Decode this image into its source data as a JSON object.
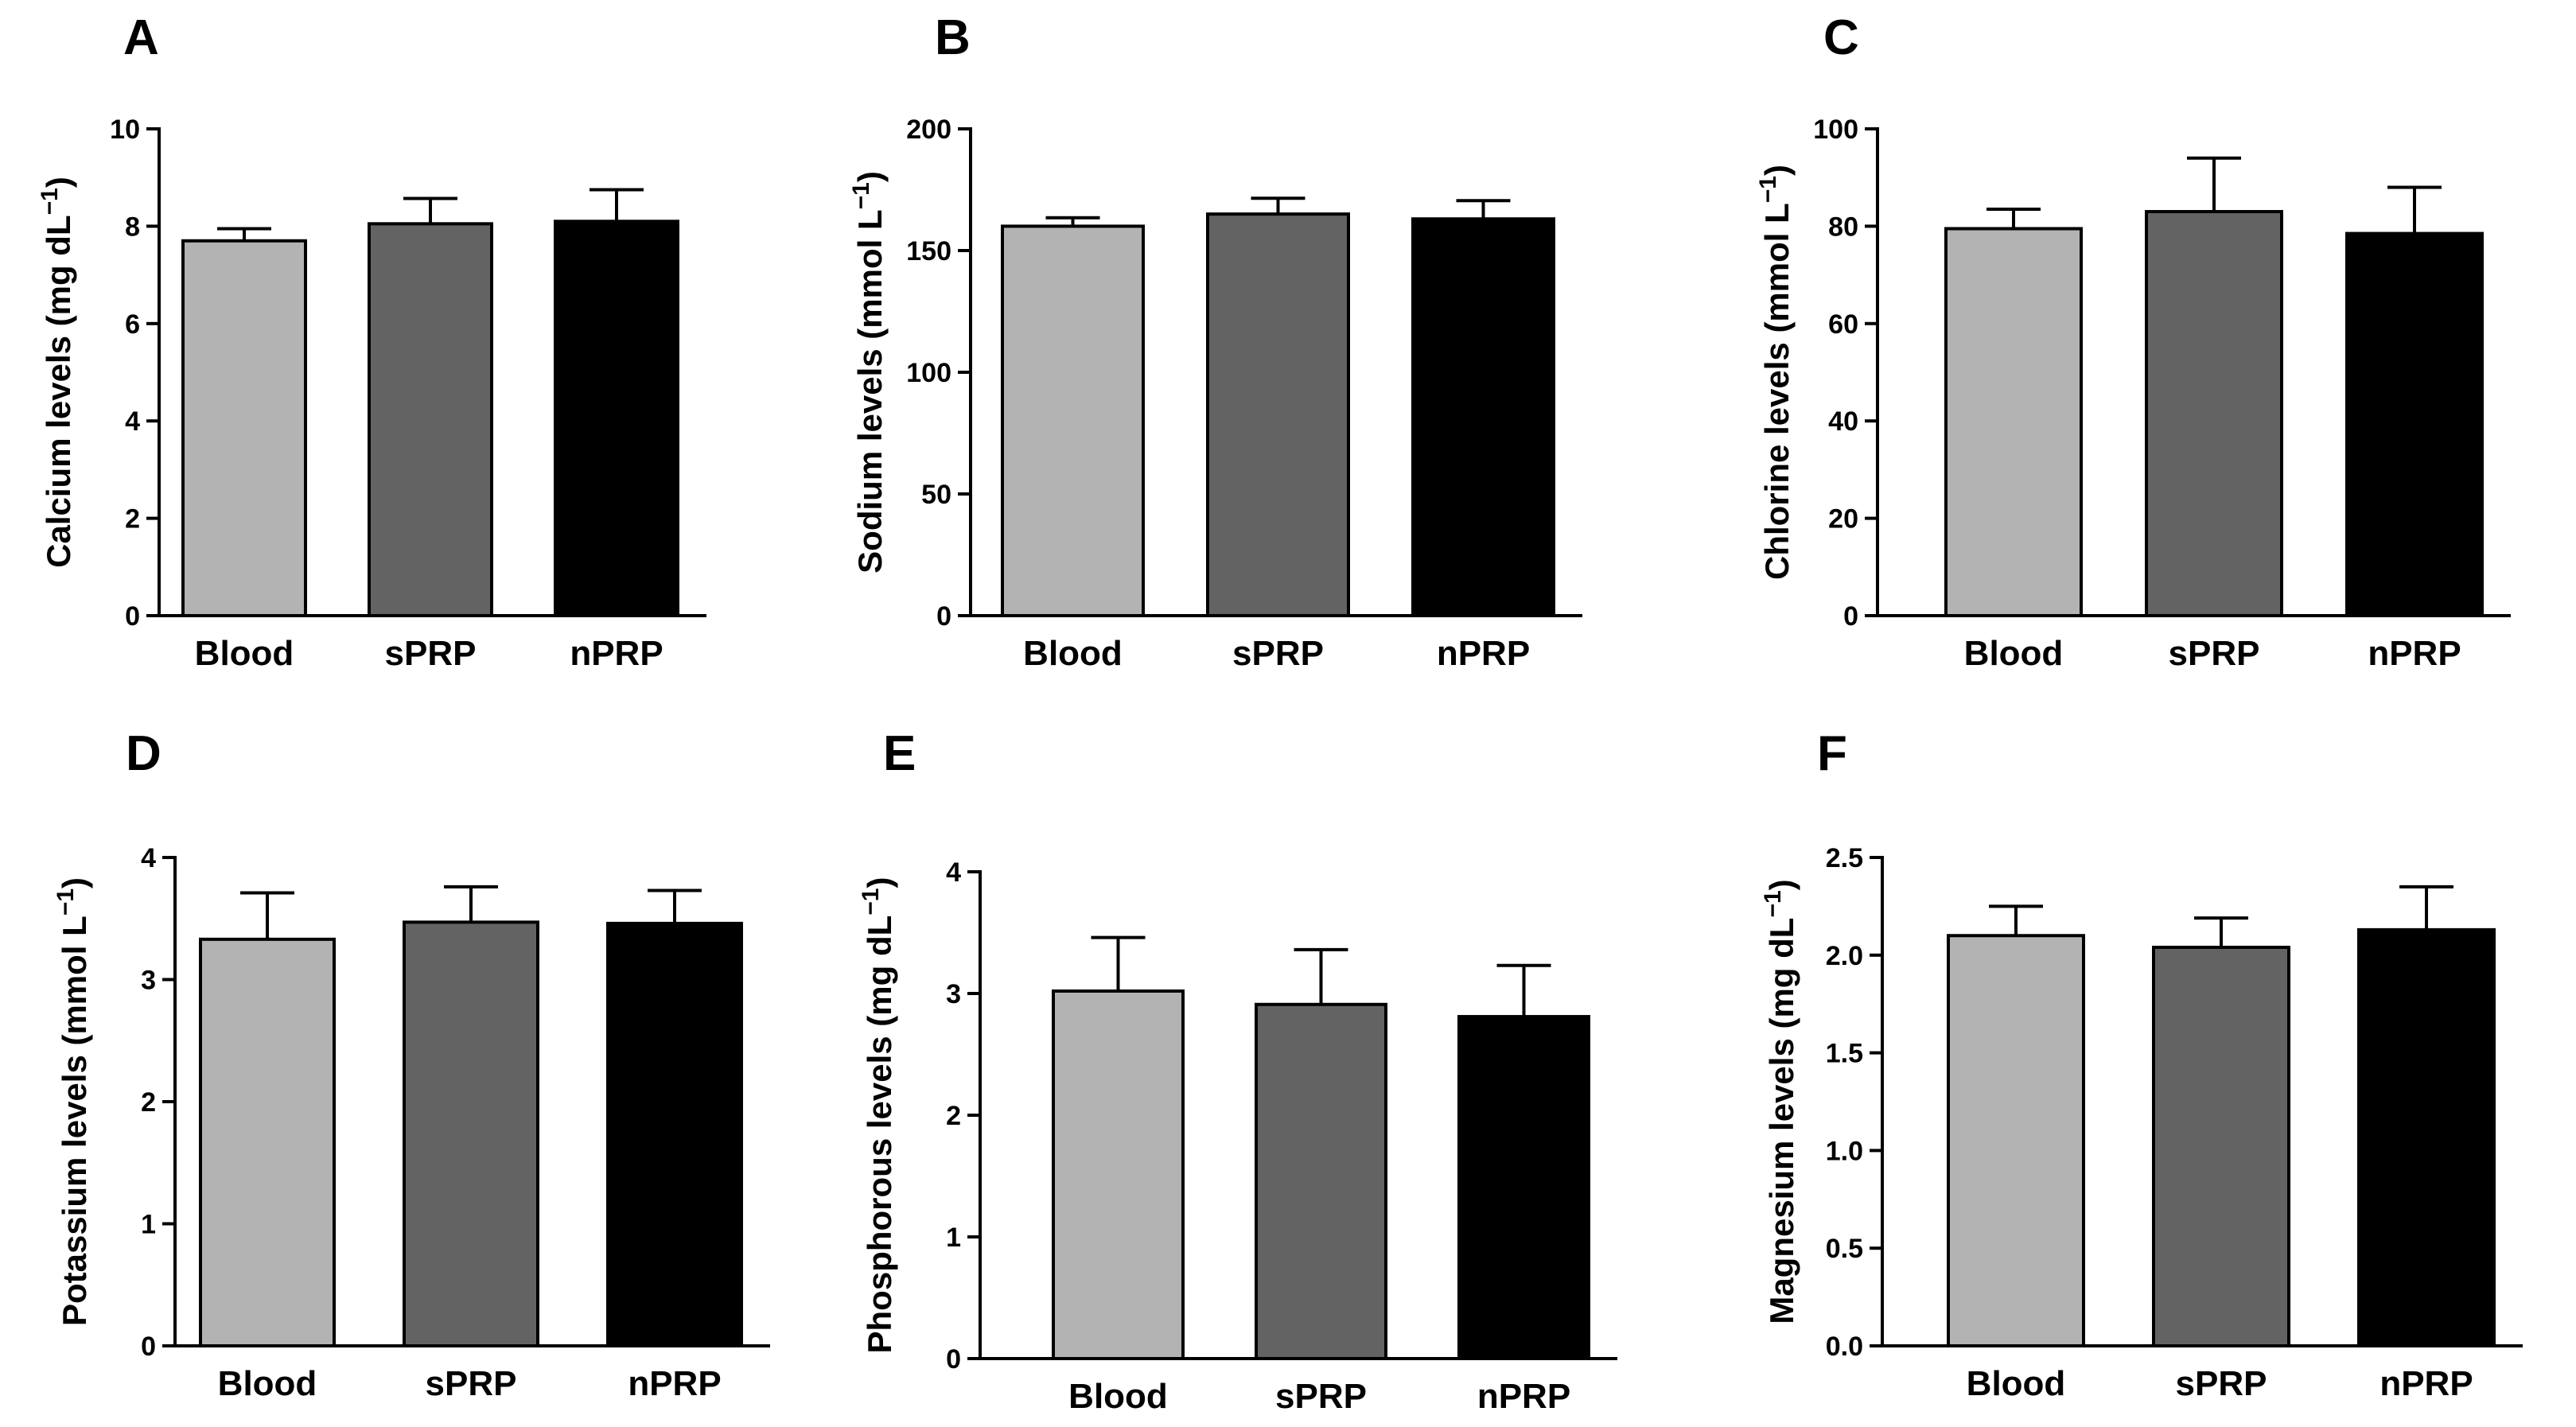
{
  "chart_data": [
    {
      "type": "bar",
      "panel": "A",
      "ylabel": "Calcium levels (mg dL",
      "ylabel_sup": "−1",
      "ylabel_end": ")",
      "categories": [
        "Blood",
        "sPRP",
        "nPRP"
      ],
      "values": [
        7.7,
        8.05,
        8.1
      ],
      "errors": [
        0.25,
        0.52,
        0.65
      ],
      "ylim": [
        0,
        10
      ],
      "yticks": [
        0,
        2,
        4,
        6,
        8,
        10
      ],
      "ytick_labels": [
        "0",
        "2",
        "4",
        "6",
        "8",
        "10"
      ],
      "colors": [
        "#b3b3b3",
        "#636363",
        "#000000"
      ]
    },
    {
      "type": "bar",
      "panel": "B",
      "ylabel": "Sodium levels (mmol L",
      "ylabel_sup": "−1",
      "ylabel_end": ")",
      "categories": [
        "Blood",
        "sPRP",
        "nPRP"
      ],
      "values": [
        160,
        165,
        163
      ],
      "errors": [
        3.5,
        6.5,
        7.5
      ],
      "ylim": [
        0,
        200
      ],
      "yticks": [
        0,
        50,
        100,
        150,
        200
      ],
      "ytick_labels": [
        "0",
        "50",
        "100",
        "150",
        "200"
      ],
      "colors": [
        "#b3b3b3",
        "#636363",
        "#000000"
      ]
    },
    {
      "type": "bar",
      "panel": "C",
      "ylabel": "Chlorine levels (mmol L",
      "ylabel_sup": "−1",
      "ylabel_end": ")",
      "categories": [
        "Blood",
        "sPRP",
        "nPRP"
      ],
      "values": [
        79.5,
        83,
        78.5
      ],
      "errors": [
        4,
        11,
        9.5
      ],
      "ylim": [
        0,
        100
      ],
      "yticks": [
        0,
        20,
        40,
        60,
        80,
        100
      ],
      "ytick_labels": [
        "0",
        "20",
        "40",
        "60",
        "80",
        "100"
      ],
      "colors": [
        "#b3b3b3",
        "#636363",
        "#000000"
      ]
    },
    {
      "type": "bar",
      "panel": "D",
      "ylabel": "Potassium levels (mmol L",
      "ylabel_sup": "−1",
      "ylabel_end": ")",
      "categories": [
        "Blood",
        "sPRP",
        "nPRP"
      ],
      "values": [
        3.33,
        3.47,
        3.46
      ],
      "errors": [
        0.38,
        0.29,
        0.27
      ],
      "ylim": [
        0,
        4
      ],
      "yticks": [
        0,
        1,
        2,
        3,
        4
      ],
      "ytick_labels": [
        "0",
        "1",
        "2",
        "3",
        "4"
      ],
      "colors": [
        "#b3b3b3",
        "#636363",
        "#000000"
      ]
    },
    {
      "type": "bar",
      "panel": "E",
      "ylabel": "Phosphorous levels (mg dL",
      "ylabel_sup": "−1",
      "ylabel_end": ")",
      "categories": [
        "Blood",
        "sPRP",
        "nPRP"
      ],
      "values": [
        3.02,
        2.91,
        2.81
      ],
      "errors": [
        0.44,
        0.45,
        0.42
      ],
      "ylim": [
        0,
        4
      ],
      "yticks": [
        0,
        1,
        2,
        3,
        4
      ],
      "ytick_labels": [
        "0",
        "1",
        "2",
        "3",
        "4"
      ],
      "colors": [
        "#b3b3b3",
        "#636363",
        "#000000"
      ]
    },
    {
      "type": "bar",
      "panel": "F",
      "ylabel": "Magnesium levels (mg dL",
      "ylabel_sup": "−1",
      "ylabel_end": ")",
      "categories": [
        "Blood",
        "sPRP",
        "nPRP"
      ],
      "values": [
        2.1,
        2.04,
        2.13
      ],
      "errors": [
        0.15,
        0.15,
        0.22
      ],
      "ylim": [
        0,
        2.5
      ],
      "yticks": [
        0,
        0.5,
        1.0,
        1.5,
        2.0,
        2.5
      ],
      "ytick_labels": [
        "0.0",
        "0.5",
        "1.0",
        "1.5",
        "2.0",
        "2.5"
      ],
      "colors": [
        "#b3b3b3",
        "#636363",
        "#000000"
      ]
    }
  ]
}
